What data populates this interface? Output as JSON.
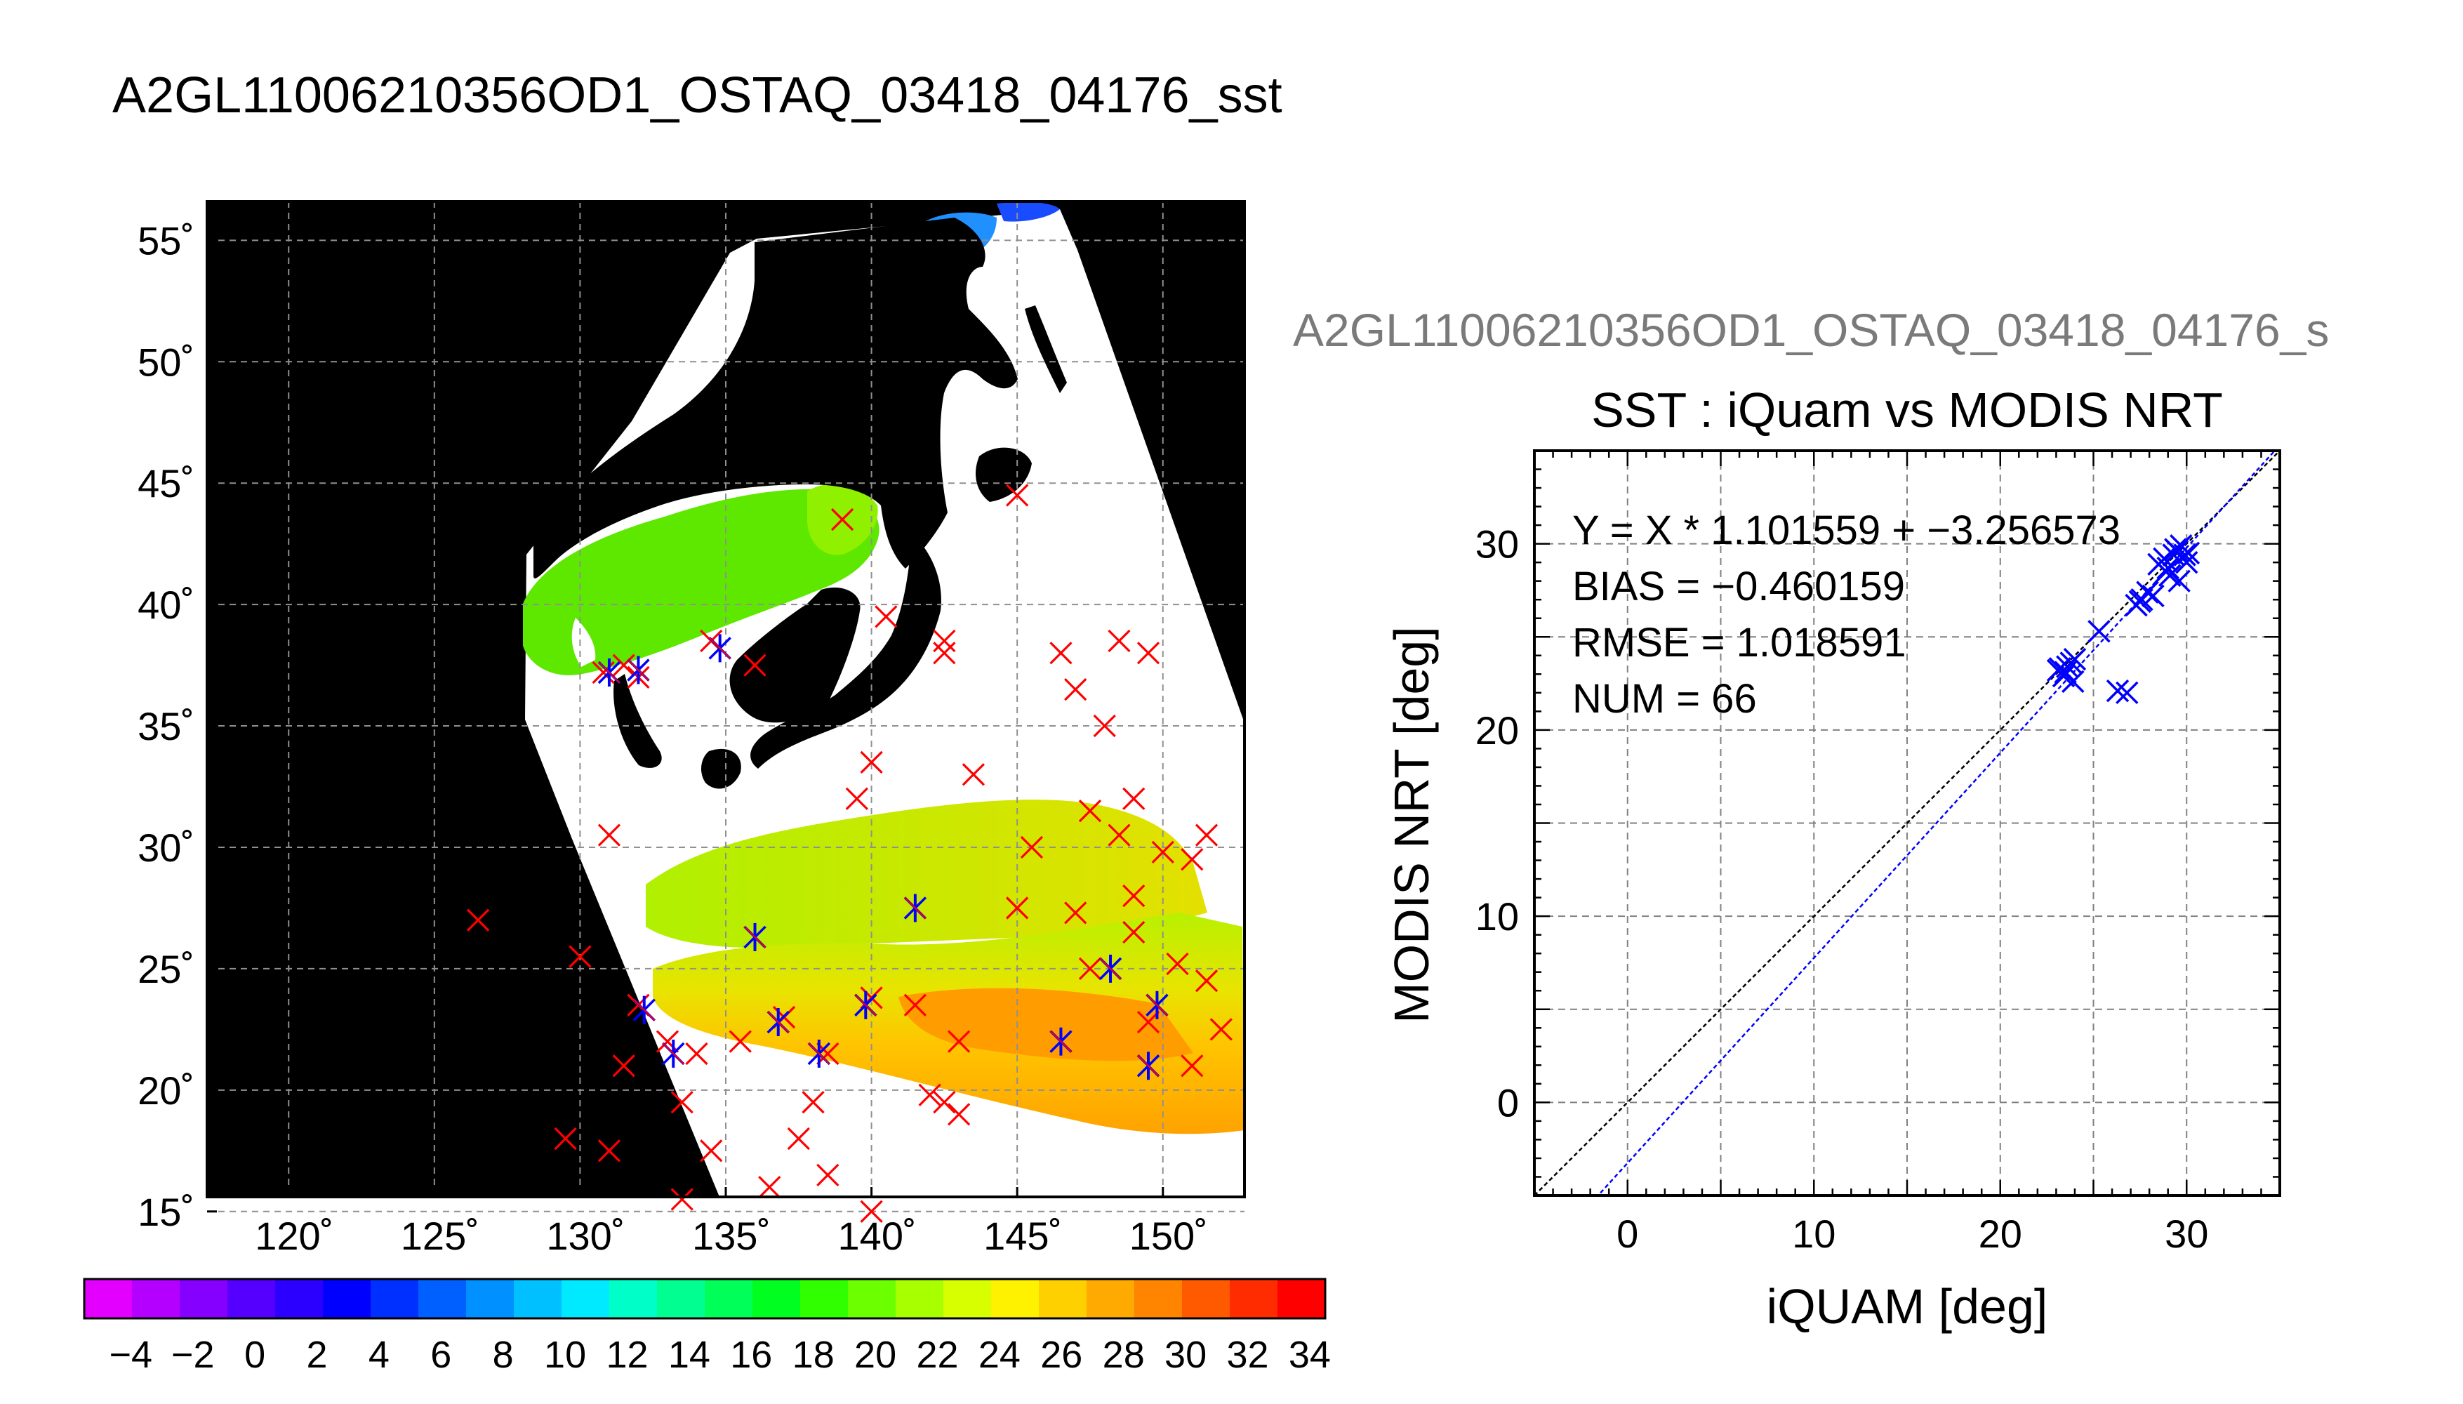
{
  "main_title": "A2GL11006210356OD1_OSTAQ_03418_04176_sst",
  "map": {
    "lat_ticks": [
      "55˚",
      "50˚",
      "45˚",
      "40˚",
      "35˚",
      "30˚",
      "25˚",
      "20˚",
      "15˚"
    ],
    "lon_ticks": [
      "120˚",
      "125˚",
      "130˚",
      "135˚",
      "140˚",
      "145˚",
      "150˚"
    ],
    "colorbar_ticks": [
      "−4",
      "−2",
      "0",
      "2",
      "4",
      "6",
      "8",
      "10",
      "12",
      "14",
      "16",
      "18",
      "20",
      "22",
      "24",
      "26",
      "28",
      "30",
      "32",
      "34"
    ],
    "colorbar_colors": [
      "#e400ff",
      "#b300ff",
      "#8600ff",
      "#5500ff",
      "#2b00ff",
      "#0000ff",
      "#0030ff",
      "#0060ff",
      "#0090ff",
      "#00c0ff",
      "#00eaff",
      "#00ffc8",
      "#00ff90",
      "#00ff58",
      "#00ff20",
      "#30ff00",
      "#6cff00",
      "#a8ff00",
      "#d8ff00",
      "#fff200",
      "#ffd000",
      "#ffaa00",
      "#ff8400",
      "#ff5a00",
      "#ff2c00",
      "#ff0000"
    ],
    "land_color": "#000000",
    "cloud_color": "#ffffff",
    "mismatch_marker_color": "#ff0000",
    "match_marker_color": "#0000ff"
  },
  "scatter_header": "A2GL11006210356OD1_OSTAQ_03418_04176_s",
  "chart_data": {
    "type": "scatter",
    "title": "SST : iQuam vs MODIS NRT",
    "xlabel": "iQUAM [deg]",
    "ylabel": "MODIS NRT [deg]",
    "xlim": [
      -5,
      35
    ],
    "ylim": [
      -5,
      35
    ],
    "xticks": [
      "0",
      "10",
      "20",
      "30"
    ],
    "yticks": [
      "0",
      "10",
      "20",
      "30"
    ],
    "grid": true,
    "stats": [
      "Y = X * 1.101559 + −3.256573",
      "BIAS = −0.460159",
      "RMSE = 1.018591",
      "NUM = 66"
    ],
    "fit": {
      "slope": 1.101559,
      "intercept": -3.256573
    },
    "points": [
      [
        23.2,
        23.3
      ],
      [
        23.5,
        23.1
      ],
      [
        23.8,
        23.6
      ],
      [
        23.4,
        22.9
      ],
      [
        23.9,
        22.6
      ],
      [
        24.0,
        23.8
      ],
      [
        23.1,
        23.2
      ],
      [
        23.6,
        23.4
      ],
      [
        25.3,
        25.3
      ],
      [
        26.3,
        22.1
      ],
      [
        26.8,
        22.0
      ],
      [
        27.3,
        26.7
      ],
      [
        27.6,
        27.0
      ],
      [
        27.9,
        27.4
      ],
      [
        28.2,
        27.2
      ],
      [
        27.5,
        26.9
      ],
      [
        28.5,
        28.9
      ],
      [
        28.8,
        29.2
      ],
      [
        29.0,
        28.7
      ],
      [
        29.3,
        29.4
      ],
      [
        29.5,
        29.6
      ],
      [
        29.1,
        28.3
      ],
      [
        29.7,
        29.9
      ],
      [
        29.9,
        29.4
      ],
      [
        30.0,
        29.0
      ],
      [
        29.6,
        28.0
      ],
      [
        30.1,
        29.5
      ],
      [
        29.4,
        29.7
      ],
      [
        28.9,
        28.5
      ]
    ],
    "marker_color": "#0000ff",
    "identity_color": "#000000",
    "fit_color": "#0000ff"
  }
}
